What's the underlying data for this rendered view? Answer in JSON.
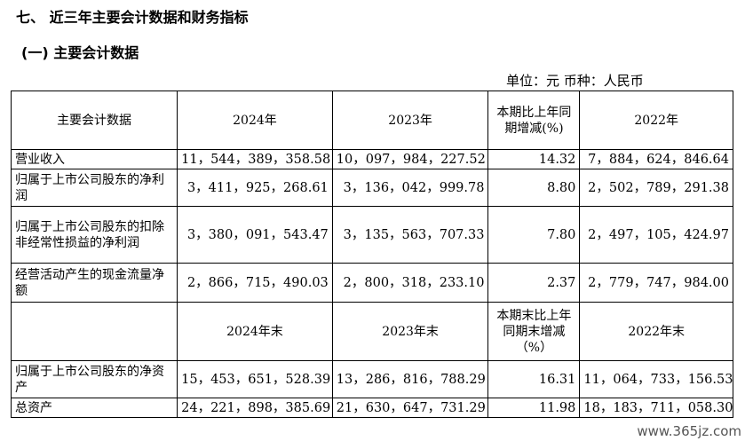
{
  "section_title": "七、 近三年主要会计数据和财务指标",
  "subsection_title": "(一) 主要会计数据",
  "unit_line": "单位：元   币种：人民币",
  "header1": {
    "col1": "主要会计数据",
    "col2": "2024年",
    "col3": "2023年",
    "col4": "本期比上年同期增减(%)",
    "col5": "2022年"
  },
  "rows1": [
    {
      "label": "营业收入",
      "y2024": "11，544，389，358.58",
      "y2023": "10，097，984，227.52",
      "change": "14.32",
      "y2022": "7，884，624，846.64"
    },
    {
      "label": "归属于上市公司股东的净利润",
      "y2024": "3，411，925，268.61",
      "y2023": "3，136，042，999.78",
      "change": "8.80",
      "y2022": "2，502，789，291.38"
    },
    {
      "label": "归属于上市公司股东的扣除非经常性损益的净利润",
      "y2024": "3，380，091，543.47",
      "y2023": "3，135，563，707.33",
      "change": "7.80",
      "y2022": "2，497，105，424.97"
    },
    {
      "label": "经营活动产生的现金流量净额",
      "y2024": "2，866，715，490.03",
      "y2023": "2，800，318，233.10",
      "change": "2.37",
      "y2022": "2，779，747，984.00"
    }
  ],
  "header2": {
    "col1": "",
    "col2": "2024年末",
    "col3": "2023年末",
    "col4": "本期末比上年同期末增减（%）",
    "col5": "2022年末"
  },
  "rows2": [
    {
      "label": "归属于上市公司股东的净资产",
      "y2024": "15，453，651，528.39",
      "y2023": "13，286，816，788.29",
      "change": "16.31",
      "y2022": "11，064，733，156.53"
    },
    {
      "label": "总资产",
      "y2024": "24，221，898，385.69",
      "y2023": "21，630，647，731.29",
      "change": "11.98",
      "y2022": "18，183，711，058.30"
    }
  ],
  "watermark": "www.365jz.com"
}
